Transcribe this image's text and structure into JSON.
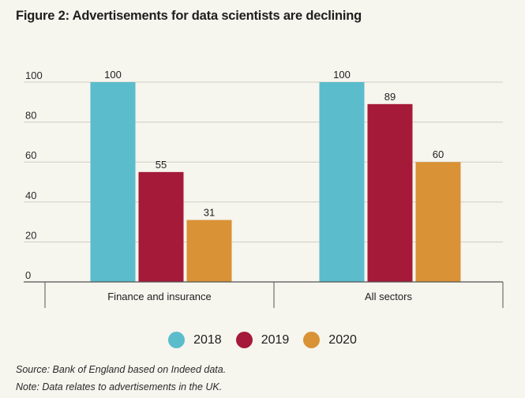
{
  "chart_data": {
    "type": "bar",
    "title": "Figure 2: Advertisements for data scientists are declining",
    "categories": [
      "Finance and insurance",
      "All sectors"
    ],
    "series": [
      {
        "name": "2018",
        "values": [
          100,
          100
        ],
        "color": "#5bbccc"
      },
      {
        "name": "2019",
        "values": [
          55,
          89
        ],
        "color": "#a51a38"
      },
      {
        "name": "2020",
        "values": [
          31,
          60
        ],
        "color": "#d99236"
      }
    ],
    "yticks": [
      0,
      20,
      40,
      60,
      80,
      100
    ],
    "ylim": [
      0,
      100
    ],
    "xlabel": "",
    "ylabel": "",
    "grid": true,
    "legend": "bottom-center"
  },
  "notes": {
    "source": "Source: Bank of England based on Indeed data.",
    "note": "Note: Data relates to advertisements in the UK."
  }
}
